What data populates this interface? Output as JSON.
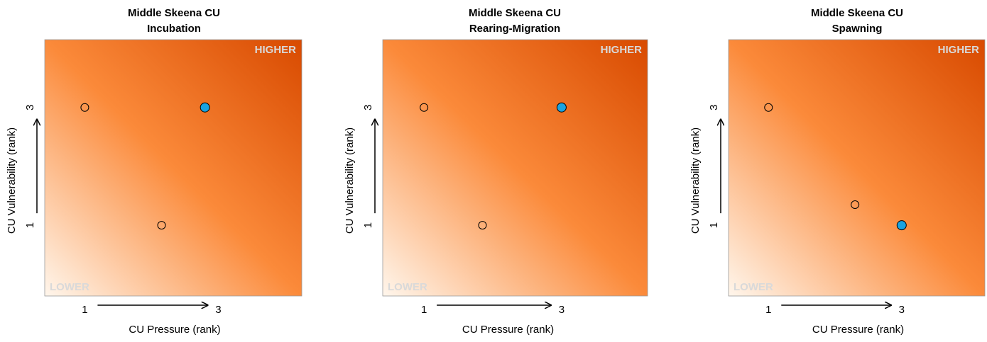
{
  "axis_labels": {
    "xlabel": "CU Pressure (rank)",
    "ylabel": "CU Vulnerability (rank)",
    "corner_high": "HIGHER",
    "corner_low": "LOWER"
  },
  "colors": {
    "background_low": "#fff6ec",
    "background_mid": "#fb8a3a",
    "background_high": "#d84a00",
    "point_empty": "#ffffff",
    "point_highlight": "#1aa3e0",
    "corner_text": "#d9d9d9"
  },
  "chart_data": [
    {
      "type": "scatter",
      "title": "Middle Skeena  CU",
      "subtitle": "Incubation",
      "xticks": [
        "1",
        "3"
      ],
      "yticks": [
        "1",
        "3"
      ],
      "xlim": [
        0.4,
        4.25
      ],
      "ylim": [
        -0.2,
        4.15
      ],
      "points": [
        {
          "x": 1.0,
          "y": 3.0,
          "highlight": false
        },
        {
          "x": 2.15,
          "y": 1.0,
          "highlight": false
        },
        {
          "x": 2.8,
          "y": 3.0,
          "highlight": true
        }
      ]
    },
    {
      "type": "scatter",
      "title": "Middle Skeena  CU",
      "subtitle": "Rearing-Migration",
      "xticks": [
        "1",
        "3"
      ],
      "yticks": [
        "1",
        "3"
      ],
      "xlim": [
        0.4,
        4.25
      ],
      "ylim": [
        -0.2,
        4.15
      ],
      "points": [
        {
          "x": 1.0,
          "y": 3.0,
          "highlight": false
        },
        {
          "x": 1.85,
          "y": 1.0,
          "highlight": false
        },
        {
          "x": 3.0,
          "y": 3.0,
          "highlight": true
        }
      ]
    },
    {
      "type": "scatter",
      "title": "Middle Skeena  CU",
      "subtitle": "Spawning",
      "xticks": [
        "1",
        "3"
      ],
      "yticks": [
        "1",
        "3"
      ],
      "xlim": [
        0.4,
        4.25
      ],
      "ylim": [
        -0.2,
        4.15
      ],
      "points": [
        {
          "x": 1.0,
          "y": 3.0,
          "highlight": false
        },
        {
          "x": 2.3,
          "y": 1.35,
          "highlight": false
        },
        {
          "x": 3.0,
          "y": 1.0,
          "highlight": true
        }
      ]
    }
  ]
}
